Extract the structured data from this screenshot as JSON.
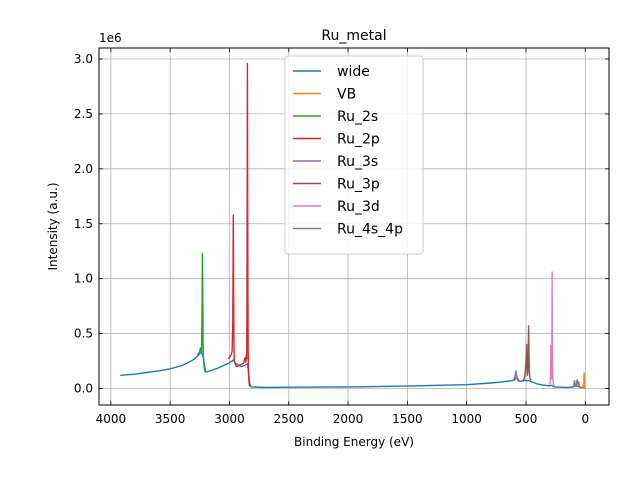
{
  "chart_data": {
    "type": "line",
    "title": "Ru_metal",
    "xlabel": "Binding Energy (eV)",
    "ylabel": "Intensity (a.u.)",
    "y_offset_label": "1e6",
    "xlim": [
      4100,
      -200
    ],
    "ylim": [
      -150000,
      3100000
    ],
    "x_ticks": [
      4000,
      3500,
      3000,
      2500,
      2000,
      1500,
      1000,
      500,
      0
    ],
    "x_tick_labels": [
      "4000",
      "3500",
      "3000",
      "2500",
      "2000",
      "1500",
      "1000",
      "500",
      "0"
    ],
    "y_ticks": [
      0,
      500000,
      1000000,
      1500000,
      2000000,
      2500000,
      3000000
    ],
    "y_tick_labels": [
      "0.0",
      "0.5",
      "1.0",
      "1.5",
      "2.0",
      "2.5",
      "3.0"
    ],
    "grid": true,
    "legend_position": "top-center",
    "series": [
      {
        "name": "wide",
        "color": "#1f77b4",
        "x": [
          3920,
          3800,
          3700,
          3600,
          3500,
          3400,
          3350,
          3300,
          3260,
          3240,
          3225,
          3215,
          3200,
          3150,
          3100,
          3050,
          3000,
          2980,
          2965,
          2950,
          2900,
          2870,
          2850,
          2845,
          2840,
          2830,
          2820,
          2700,
          2500,
          2000,
          1500,
          1200,
          1000,
          800,
          700,
          600,
          590,
          580,
          570,
          560,
          550,
          520,
          500,
          490,
          480,
          470,
          450,
          400,
          350,
          300,
          290,
          280,
          270,
          260,
          200,
          150,
          100,
          80,
          60,
          40,
          20,
          10,
          0
        ],
        "y": [
          120000,
          130000,
          145000,
          160000,
          180000,
          210000,
          235000,
          265000,
          305000,
          330000,
          310000,
          240000,
          150000,
          165000,
          185000,
          210000,
          235000,
          250000,
          260000,
          230000,
          200000,
          210000,
          225000,
          210000,
          160000,
          50000,
          15000,
          10000,
          12000,
          15000,
          22000,
          30000,
          35000,
          50000,
          60000,
          75000,
          90000,
          110000,
          95000,
          70000,
          65000,
          70000,
          75000,
          70000,
          72000,
          68000,
          60000,
          40000,
          30000,
          25000,
          30000,
          25000,
          20000,
          15000,
          12000,
          10000,
          15000,
          25000,
          18000,
          10000,
          8000,
          5000,
          3000
        ]
      },
      {
        "name": "VB",
        "color": "#ff7f0e",
        "x": [
          25,
          20,
          15,
          12,
          10,
          8,
          6,
          4,
          2,
          0
        ],
        "y": [
          5000,
          15000,
          40000,
          60000,
          140000,
          60000,
          20000,
          10000,
          5000,
          3000
        ]
      },
      {
        "name": "Ru_2s",
        "color": "#2ca02c",
        "x": [
          3270,
          3260,
          3250,
          3245,
          3240,
          3235,
          3232,
          3228,
          3225,
          3222,
          3218,
          3212,
          3205
        ],
        "y": [
          300000,
          320000,
          340000,
          370000,
          350000,
          330000,
          600000,
          1230000,
          800000,
          400000,
          250000,
          180000,
          150000
        ]
      },
      {
        "name": "Ru_2p",
        "color": "#d62728",
        "x": [
          3010,
          2995,
          2985,
          2978,
          2972,
          2968,
          2965,
          2962,
          2958,
          2950,
          2940,
          2920,
          2900,
          2880,
          2870,
          2862,
          2858,
          2855,
          2852,
          2849,
          2847,
          2845,
          2843,
          2840,
          2838,
          2834,
          2830
        ],
        "y": [
          270000,
          290000,
          310000,
          340000,
          600000,
          1580000,
          900000,
          350000,
          250000,
          220000,
          200000,
          210000,
          220000,
          230000,
          280000,
          240000,
          300000,
          270000,
          800000,
          2960000,
          2050000,
          1200000,
          400000,
          180000,
          100000,
          40000,
          20000
        ]
      },
      {
        "name": "Ru_3s",
        "color": "#9467bd",
        "x": [
          610,
          600,
          592,
          588,
          585,
          580,
          575,
          570,
          565,
          560
        ],
        "y": [
          75000,
          85000,
          110000,
          140000,
          160000,
          120000,
          90000,
          75000,
          70000,
          65000
        ]
      },
      {
        "name": "Ru_3p",
        "color": "#8c564b",
        "x": [
          530,
          520,
          510,
          505,
          500,
          495,
          492,
          488,
          485,
          482,
          478,
          474,
          470,
          465,
          460,
          455
        ],
        "y": [
          70000,
          80000,
          110000,
          180000,
          250000,
          400000,
          200000,
          120000,
          150000,
          300000,
          570000,
          250000,
          120000,
          90000,
          80000,
          75000
        ]
      },
      {
        "name": "Ru_3d",
        "color": "#e377c2",
        "x": [
          310,
          300,
          295,
          292,
          290,
          287,
          285,
          283,
          281,
          280,
          278,
          275,
          270,
          265,
          260
        ],
        "y": [
          40000,
          45000,
          60000,
          150000,
          390000,
          150000,
          90000,
          250000,
          600000,
          1060000,
          500000,
          120000,
          40000,
          25000,
          20000
        ]
      },
      {
        "name": "Ru_4s_4p",
        "color": "#7f7f7f",
        "x": [
          110,
          100,
          95,
          90,
          85,
          80,
          75,
          70,
          65,
          60,
          55,
          50,
          45,
          40,
          35
        ],
        "y": [
          10000,
          20000,
          40000,
          70000,
          30000,
          20000,
          35000,
          80000,
          50000,
          30000,
          60000,
          25000,
          15000,
          10000,
          8000
        ]
      }
    ]
  }
}
